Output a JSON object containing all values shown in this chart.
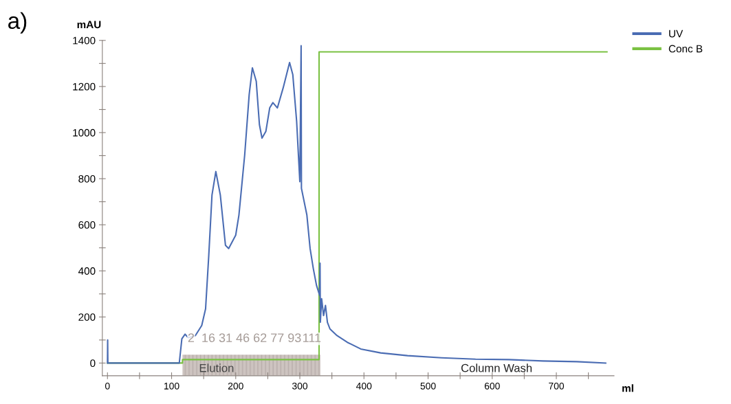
{
  "chart_data": {
    "type": "line",
    "xlabel": "ml",
    "ylabel": "mAU",
    "xlim": [
      -8,
      790
    ],
    "ylim": [
      -55,
      1400
    ],
    "xticks": [
      0,
      {
        "value": 50,
        "label": null
      },
      100,
      {
        "value": 150,
        "label": null
      },
      200,
      {
        "value": 250,
        "label": null
      },
      300,
      {
        "value": 350,
        "label": null
      },
      400,
      {
        "value": 450,
        "label": null
      },
      500,
      {
        "value": 550,
        "label": null
      },
      600,
      {
        "value": 650,
        "label": null
      },
      700,
      {
        "value": 750,
        "label": null
      }
    ],
    "yticks": [
      0,
      {
        "value": 100,
        "label": null
      },
      200,
      {
        "value": 300,
        "label": null
      },
      400,
      {
        "value": 500,
        "label": null
      },
      600,
      {
        "value": 700,
        "label": null
      },
      800,
      {
        "value": 900,
        "label": null
      },
      1000,
      {
        "value": 1100,
        "label": null
      },
      1200,
      {
        "value": 1300,
        "label": null
      },
      1400
    ],
    "series": [
      {
        "name": "UV",
        "color": "#4a6cb3",
        "x": [
          0,
          0.3,
          0.6,
          112,
          116,
          121,
          126,
          137,
          147,
          153,
          158,
          163,
          169,
          176,
          184,
          189,
          200,
          205,
          214,
          221,
          226,
          232,
          237,
          241,
          247,
          253,
          258,
          265,
          274,
          284,
          289,
          295,
          300,
          302,
          302.5,
          311,
          316,
          321,
          326,
          331,
          331.5,
          332,
          334,
          337,
          340,
          343,
          347,
          358,
          374,
          395,
          426,
          468,
          521,
          574,
          626,
          679,
          732,
          777
        ],
        "values": [
          0,
          100,
          0,
          0,
          105,
          125,
          110,
          119,
          163,
          235,
          468,
          729,
          831,
          729,
          511,
          497,
          555,
          642,
          903,
          1165,
          1281,
          1223,
          1034,
          976,
          1005,
          1107,
          1130,
          1107,
          1194,
          1304,
          1252,
          1049,
          787,
          1377,
          758,
          642,
          497,
          410,
          337,
          293,
          433,
          177,
          279,
          206,
          250,
          177,
          148,
          119,
          90,
          61,
          44,
          32,
          23,
          17,
          15,
          9,
          6,
          0
        ]
      },
      {
        "name": "Conc B",
        "color": "#7ac142",
        "x": [
          0,
          117,
          117,
          330,
          330,
          779
        ],
        "values": [
          0,
          0,
          15,
          15,
          1350,
          1350
        ]
      }
    ],
    "bands": [
      {
        "axis": "x",
        "from": 117,
        "to": 332,
        "color": "#b8aaa5"
      }
    ],
    "legend": "top right",
    "grid": false,
    "marker": "none",
    "line_style": "solid",
    "annotations": [
      "a)",
      "2",
      "16",
      "31",
      "46",
      "62",
      "77",
      "93",
      "111",
      "Elution",
      "Column Wash"
    ]
  }
}
